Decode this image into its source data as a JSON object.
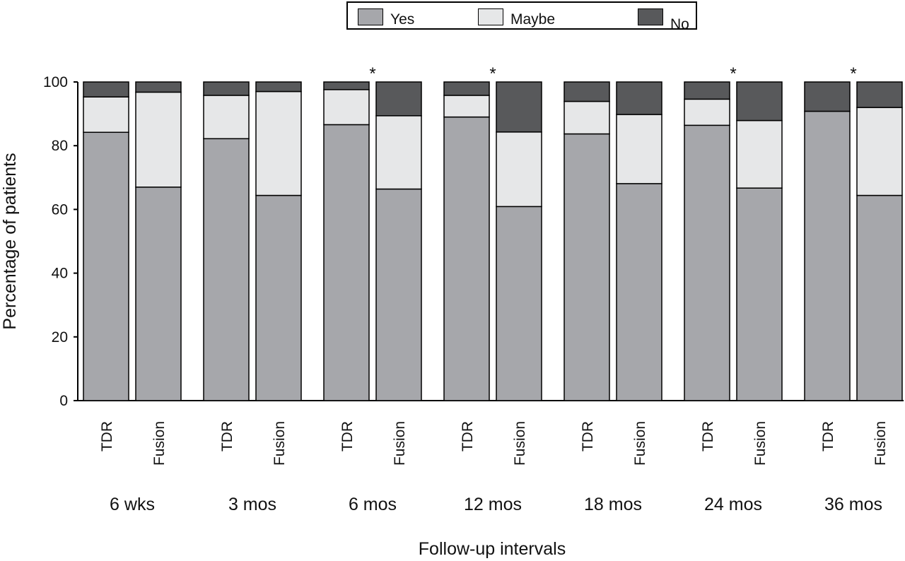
{
  "chart_data": {
    "type": "bar",
    "stacked": true,
    "ylabel": "Percentage of patients",
    "xlabel": "Follow-up intervals",
    "ylim": [
      0,
      100
    ],
    "yticks": [
      "0",
      "20",
      "40",
      "60",
      "80",
      "100"
    ],
    "legend_position": "top-center",
    "groups": [
      "6 wks",
      "3 mos",
      "6 mos",
      "12 mos",
      "18 mos",
      "24 mos",
      "36 mos"
    ],
    "bar_labels": [
      "TDR",
      "Fusion"
    ],
    "significance_marker": "*",
    "significant_groups": [
      "6 mos",
      "12 mos",
      "24 mos",
      "36 mos"
    ],
    "series": [
      {
        "name": "Yes",
        "color": "#a6a7ab",
        "values": [
          [
            84.2,
            67.0
          ],
          [
            82.2,
            64.4
          ],
          [
            86.6,
            66.4
          ],
          [
            89.0,
            60.9
          ],
          [
            83.7,
            68.1
          ],
          [
            86.4,
            66.7
          ],
          [
            90.8,
            64.4
          ]
        ]
      },
      {
        "name": "Maybe",
        "color": "#e6e7e8",
        "values": [
          [
            11.1,
            29.8
          ],
          [
            13.6,
            32.6
          ],
          [
            11.0,
            23.0
          ],
          [
            6.8,
            23.4
          ],
          [
            10.2,
            21.7
          ],
          [
            8.2,
            21.2
          ],
          [
            0.0,
            27.6
          ]
        ]
      },
      {
        "name": "No",
        "color": "#58595b",
        "values": [
          [
            4.7,
            3.2
          ],
          [
            4.2,
            3.0
          ],
          [
            2.4,
            10.6
          ],
          [
            4.2,
            15.7
          ],
          [
            6.1,
            10.2
          ],
          [
            5.4,
            12.1
          ],
          [
            9.2,
            8.0
          ]
        ]
      }
    ]
  }
}
